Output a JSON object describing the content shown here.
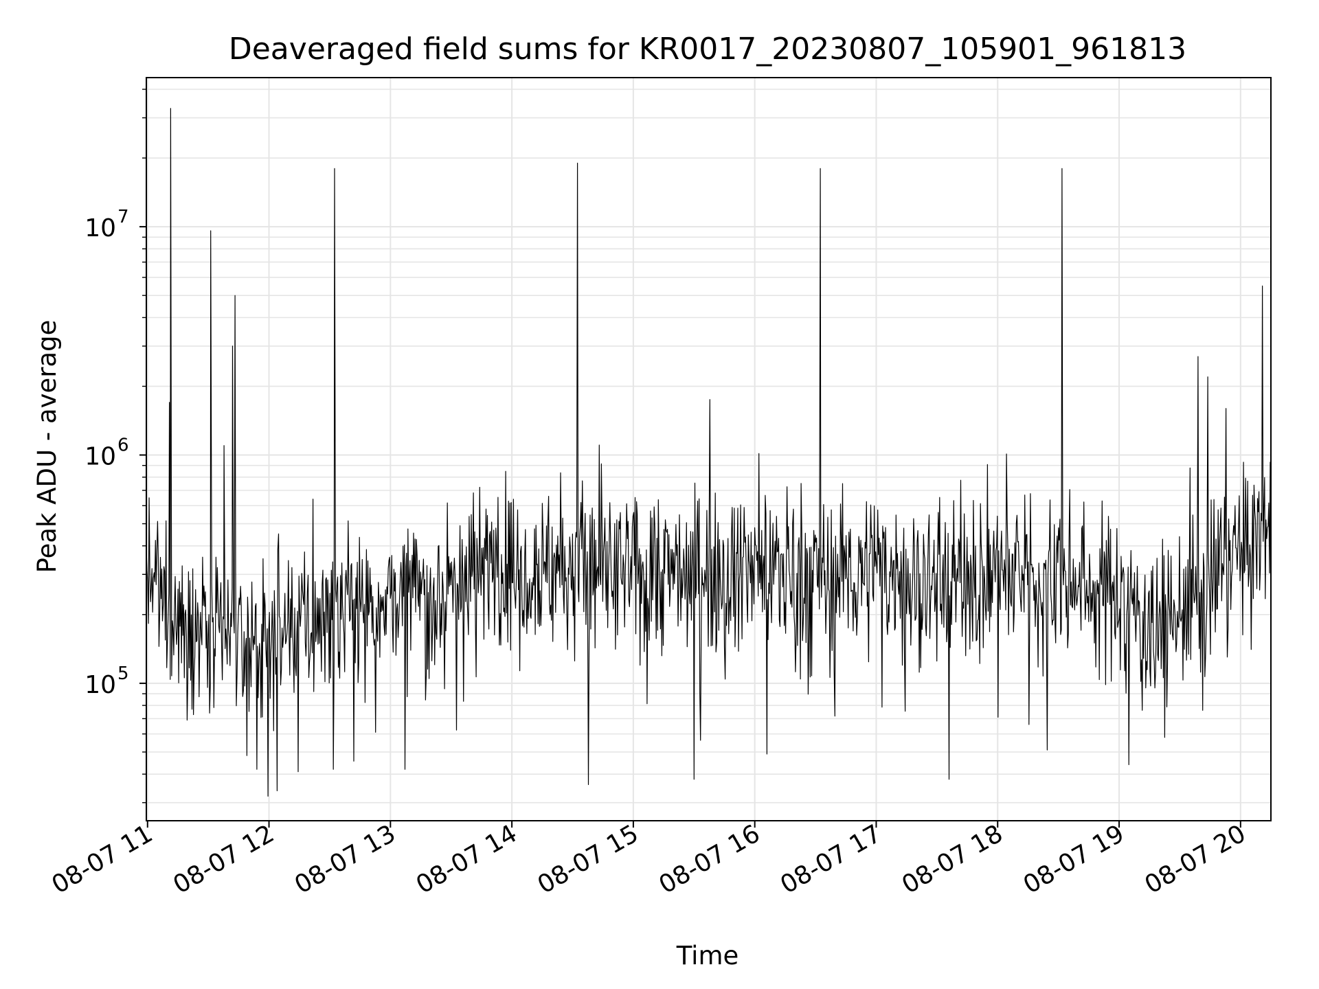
{
  "chart_data": {
    "type": "line",
    "title": "Deaveraged field sums for KR0017_20230807_105901_961813",
    "xlabel": "Time",
    "ylabel": "Peak ADU - average",
    "yscale": "log",
    "x_tick_labels": [
      "08-07 11",
      "08-07 12",
      "08-07 13",
      "08-07 14",
      "08-07 15",
      "08-07 16",
      "08-07 17",
      "08-07 18",
      "08-07 19",
      "08-07 20"
    ],
    "x_tick_hours": [
      11,
      12,
      13,
      14,
      15,
      16,
      17,
      18,
      19,
      20
    ],
    "xlim_hours": [
      10.99,
      20.25
    ],
    "y_ticks": [
      {
        "base": "10",
        "exp": "5",
        "value": 100000
      },
      {
        "base": "10",
        "exp": "6",
        "value": 1000000
      },
      {
        "base": "10",
        "exp": "7",
        "value": 10000000
      }
    ],
    "ylim": [
      25000,
      45000000
    ],
    "grid": true,
    "line_color": "#000000",
    "grid_color": "#e5e5e5",
    "baseline_points": [
      [
        10.99,
        300000
      ],
      [
        11.1,
        240000
      ],
      [
        11.3,
        180000
      ],
      [
        11.6,
        160000
      ],
      [
        11.9,
        140000
      ],
      [
        12.2,
        170000
      ],
      [
        12.5,
        190000
      ],
      [
        12.9,
        240000
      ],
      [
        13.4,
        250000
      ],
      [
        13.8,
        330000
      ],
      [
        14.5,
        330000
      ],
      [
        15.0,
        300000
      ],
      [
        15.5,
        320000
      ],
      [
        16.0,
        320000
      ],
      [
        16.5,
        310000
      ],
      [
        17.0,
        300000
      ],
      [
        17.5,
        280000
      ],
      [
        18.0,
        300000
      ],
      [
        18.6,
        280000
      ],
      [
        19.0,
        250000
      ],
      [
        19.3,
        170000
      ],
      [
        19.6,
        220000
      ],
      [
        19.9,
        320000
      ],
      [
        20.25,
        500000
      ]
    ],
    "spikes": [
      {
        "time_hours": 11.19,
        "value": 33000000
      },
      {
        "time_hours": 11.18,
        "value": 1700000
      },
      {
        "time_hours": 11.52,
        "value": 9600000
      },
      {
        "time_hours": 11.7,
        "value": 3000000
      },
      {
        "time_hours": 11.72,
        "value": 5000000
      },
      {
        "time_hours": 11.63,
        "value": 1100000
      },
      {
        "time_hours": 12.54,
        "value": 18000000
      },
      {
        "time_hours": 14.54,
        "value": 19000000
      },
      {
        "time_hours": 15.63,
        "value": 1750000
      },
      {
        "time_hours": 16.54,
        "value": 18000000
      },
      {
        "time_hours": 18.53,
        "value": 18000000
      },
      {
        "time_hours": 19.65,
        "value": 2700000
      },
      {
        "time_hours": 19.73,
        "value": 2200000
      },
      {
        "time_hours": 19.88,
        "value": 1600000
      },
      {
        "time_hours": 20.18,
        "value": 5500000
      }
    ],
    "dips": [
      {
        "time_hours": 11.9,
        "value": 42000
      },
      {
        "time_hours": 12.24,
        "value": 41000
      },
      {
        "time_hours": 12.53,
        "value": 42000
      },
      {
        "time_hours": 13.12,
        "value": 42000
      },
      {
        "time_hours": 14.63,
        "value": 36000
      },
      {
        "time_hours": 15.5,
        "value": 38000
      },
      {
        "time_hours": 16.1,
        "value": 49000
      },
      {
        "time_hours": 17.6,
        "value": 38000
      },
      {
        "time_hours": 19.08,
        "value": 44000
      }
    ]
  }
}
